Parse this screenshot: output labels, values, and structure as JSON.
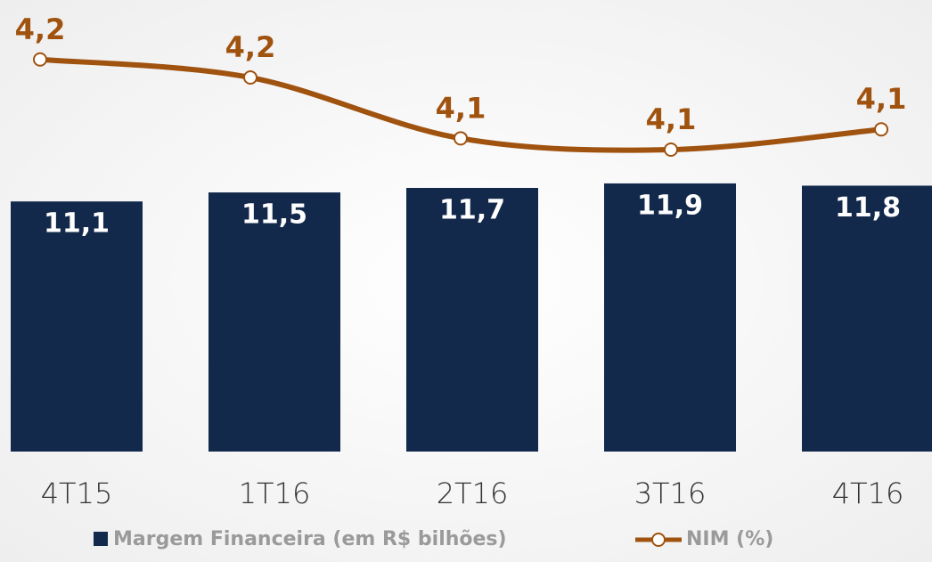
{
  "chart_data": {
    "type": "bar-line",
    "categories": [
      "4T15",
      "1T16",
      "2T16",
      "3T16",
      "4T16"
    ],
    "ylim": [
      0,
      20
    ],
    "y2lim": [
      4.0,
      4.2
    ],
    "series": [
      {
        "name": "Margem Financeira (em R$ bilhões)",
        "color": "#13294b",
        "type": "bar",
        "values": [
          11.1,
          11.5,
          11.7,
          11.9,
          11.8
        ],
        "value_labels": [
          "11,1",
          "11,5",
          "11,7",
          "11,9",
          "11,8"
        ]
      },
      {
        "name": "NIM (%)",
        "color": "#a0520f",
        "type": "line",
        "axis": "y2",
        "values": [
          4.174,
          4.166,
          4.139,
          4.134,
          4.143
        ],
        "value_labels": [
          "4,2",
          "4,2",
          "4,1",
          "4,1",
          "4,1"
        ]
      }
    ]
  }
}
